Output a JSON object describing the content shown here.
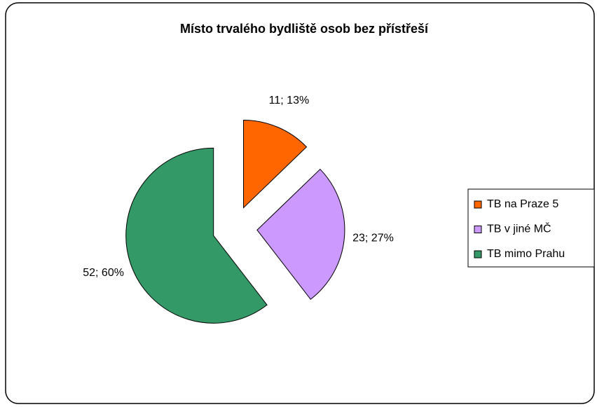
{
  "chart_data": {
    "type": "pie",
    "title": "Místo trvalého bydliště osob bez přístřeší",
    "categories": [
      "TB na Praze 5",
      "TB v jiné MČ",
      "TB mimo Prahu"
    ],
    "values": [
      11,
      23,
      52
    ],
    "value_labels": [
      "11; 13%",
      "23; 27%",
      "52; 60%"
    ],
    "colors": [
      "#ff6600",
      "#cc99ff",
      "#339966"
    ],
    "exploded": true,
    "legend": "right"
  }
}
